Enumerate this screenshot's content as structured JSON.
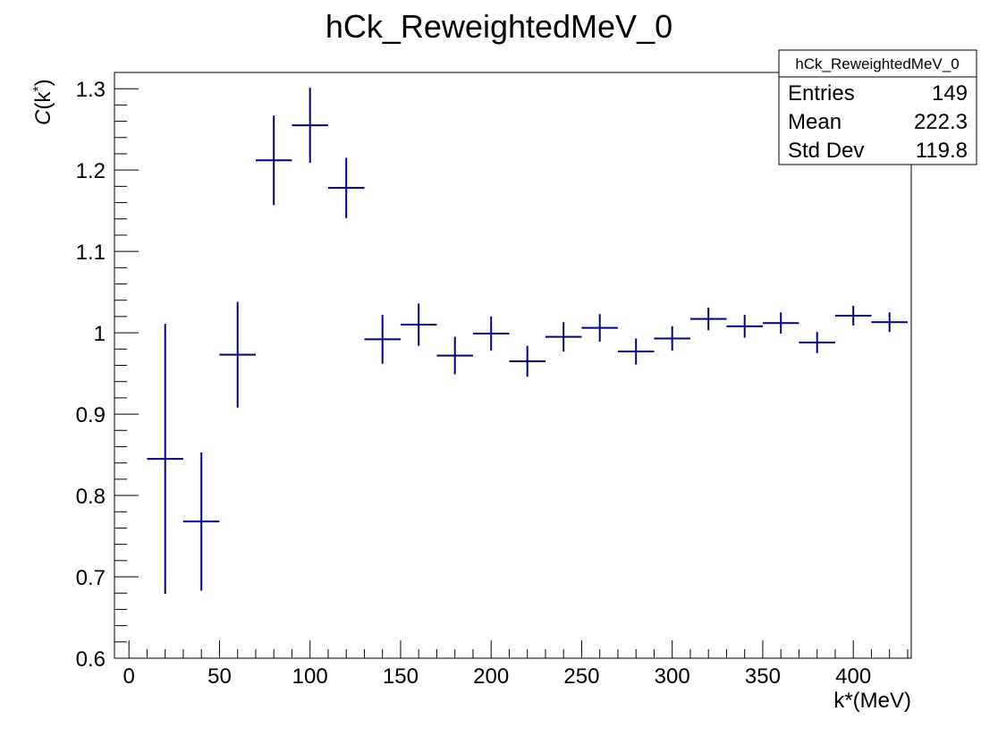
{
  "chart_data": {
    "type": "scatter",
    "title": "hCk_ReweightedMeV_0",
    "xlabel": "k*(MeV)",
    "ylabel_main": "C",
    "ylabel_arg": "(k",
    "ylabel_star": "*",
    "ylabel_close": ")",
    "xlim": [
      -8,
      432
    ],
    "ylim": [
      0.6,
      1.32
    ],
    "x_major_ticks": [
      0,
      50,
      100,
      150,
      200,
      250,
      300,
      350,
      400
    ],
    "x_tick_labels": [
      "0",
      "50",
      "100",
      "150",
      "200",
      "250",
      "300",
      "350",
      "400"
    ],
    "y_major_ticks": [
      0.6,
      0.7,
      0.8,
      0.9,
      1.0,
      1.1,
      1.2,
      1.3
    ],
    "y_tick_labels": [
      "0.6",
      "0.7",
      "0.8",
      "0.9",
      "1",
      "1.1",
      "1.2",
      "1.3"
    ],
    "bin_width": 20,
    "series": [
      {
        "name": "hCk_ReweightedMeV_0",
        "color": "#000080",
        "points": [
          {
            "x": 20,
            "y": 0.845,
            "err": 0.166
          },
          {
            "x": 40,
            "y": 0.768,
            "err": 0.085
          },
          {
            "x": 60,
            "y": 0.973,
            "err": 0.065
          },
          {
            "x": 80,
            "y": 1.212,
            "err": 0.055
          },
          {
            "x": 100,
            "y": 1.255,
            "err": 0.046
          },
          {
            "x": 120,
            "y": 1.178,
            "err": 0.037
          },
          {
            "x": 140,
            "y": 0.992,
            "err": 0.03
          },
          {
            "x": 160,
            "y": 1.01,
            "err": 0.026
          },
          {
            "x": 180,
            "y": 0.972,
            "err": 0.023
          },
          {
            "x": 200,
            "y": 0.999,
            "err": 0.021
          },
          {
            "x": 220,
            "y": 0.965,
            "err": 0.019
          },
          {
            "x": 240,
            "y": 0.995,
            "err": 0.018
          },
          {
            "x": 260,
            "y": 1.006,
            "err": 0.017
          },
          {
            "x": 280,
            "y": 0.977,
            "err": 0.016
          },
          {
            "x": 300,
            "y": 0.993,
            "err": 0.015
          },
          {
            "x": 320,
            "y": 1.017,
            "err": 0.014
          },
          {
            "x": 340,
            "y": 1.008,
            "err": 0.014
          },
          {
            "x": 360,
            "y": 1.012,
            "err": 0.013
          },
          {
            "x": 380,
            "y": 0.988,
            "err": 0.013
          },
          {
            "x": 400,
            "y": 1.021,
            "err": 0.012
          },
          {
            "x": 420,
            "y": 1.013,
            "err": 0.012
          }
        ]
      }
    ]
  },
  "stats_box": {
    "title": "hCk_ReweightedMeV_0",
    "rows": [
      {
        "label": "Entries",
        "value": "149"
      },
      {
        "label": "Mean",
        "value": "222.3"
      },
      {
        "label": "Std Dev",
        "value": "119.8"
      }
    ]
  }
}
